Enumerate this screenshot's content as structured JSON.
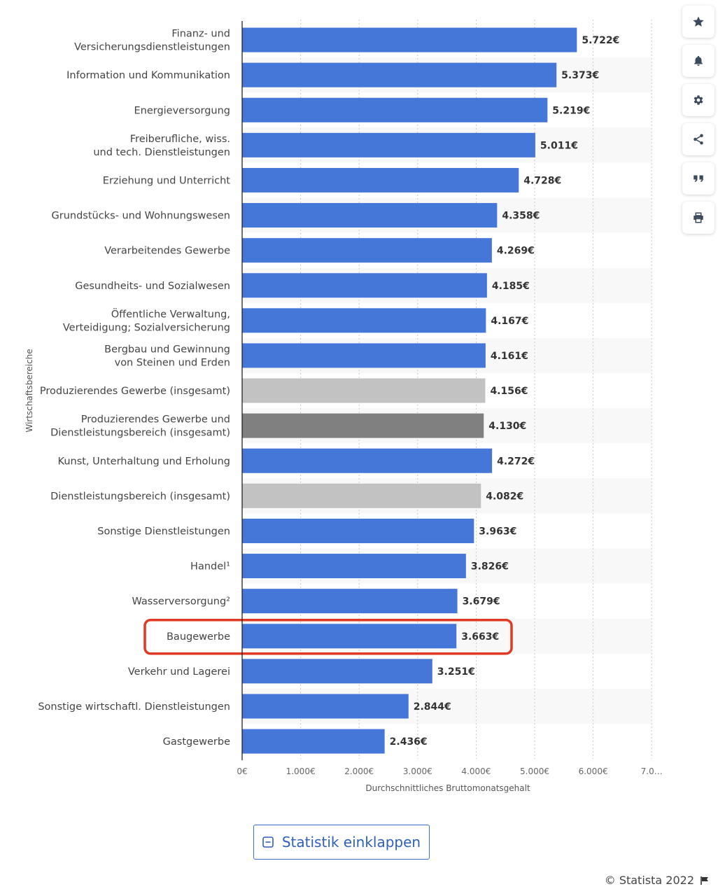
{
  "chart_data": {
    "type": "bar",
    "orientation": "horizontal",
    "categories": [
      "Finanz- und\nVersicherungsdienstleistungen",
      "Information und Kommunikation",
      "Energieversorgung",
      "Freiberufliche, wiss.\nund tech. Dienstleistungen",
      "Erziehung und Unterricht",
      "Grundstücks- und Wohnungswesen",
      "Verarbeitendes Gewerbe",
      "Gesundheits- und Sozialwesen",
      "Öffentliche Verwaltung,\nVerteidigung; Sozialversicherung",
      "Bergbau und Gewinnung\nvon Steinen und Erden",
      "Produzierendes Gewerbe (insgesamt)",
      "Produzierendes Gewerbe und\nDienstleistungsbereich (insgesamt)",
      "Kunst, Unterhaltung und Erholung",
      "Dienstleistungsbereich (insgesamt)",
      "Sonstige Dienstleistungen",
      "Handel¹",
      "Wasserversorgung²",
      "Baugewerbe",
      "Verkehr und Lagerei",
      "Sonstige wirtschaftl. Dienstleistungen",
      "Gastgewerbe"
    ],
    "values": [
      5722,
      5373,
      5219,
      5011,
      4728,
      4358,
      4269,
      4185,
      4167,
      4161,
      4156,
      4130,
      4272,
      4082,
      3963,
      3826,
      3679,
      3663,
      3251,
      2844,
      2436
    ],
    "value_labels": [
      "5.722€",
      "5.373€",
      "5.219€",
      "5.011€",
      "4.728€",
      "4.358€",
      "4.269€",
      "4.185€",
      "4.167€",
      "4.161€",
      "4.156€",
      "4.130€",
      "4.272€",
      "4.082€",
      "3.963€",
      "3.826€",
      "3.679€",
      "3.663€",
      "3.251€",
      "2.844€",
      "2.436€"
    ],
    "bar_colors": [
      "#4577d9",
      "#4577d9",
      "#4577d9",
      "#4577d9",
      "#4577d9",
      "#4577d9",
      "#4577d9",
      "#4577d9",
      "#4577d9",
      "#4577d9",
      "#c2c2c2",
      "#808080",
      "#4577d9",
      "#c2c2c2",
      "#4577d9",
      "#4577d9",
      "#4577d9",
      "#4577d9",
      "#4577d9",
      "#4577d9",
      "#4577d9"
    ],
    "highlighted_category": "Baugewerbe",
    "highlight_color": "#e03a24",
    "xlim": [
      0,
      7000
    ],
    "xticks": [
      0,
      1000,
      2000,
      3000,
      4000,
      5000,
      6000,
      7000
    ],
    "xtick_labels": [
      "0€",
      "1.000€",
      "2.000€",
      "3.000€",
      "4.000€",
      "5.000€",
      "6.000€",
      "7.0…"
    ],
    "xlabel": "Durchschnittliches Bruttomonatsgehalt",
    "ylabel": "Wirtschaftsbereiche",
    "grid": true
  },
  "toolbar": {
    "buttons": [
      {
        "name": "favorite",
        "icon": "star-icon"
      },
      {
        "name": "notification",
        "icon": "bell-icon"
      },
      {
        "name": "settings",
        "icon": "gear-icon"
      },
      {
        "name": "share",
        "icon": "share-icon"
      },
      {
        "name": "cite",
        "icon": "quote-icon"
      },
      {
        "name": "print",
        "icon": "printer-icon"
      }
    ]
  },
  "collapse_button": {
    "label": "Statistik einklappen",
    "icon": "minus-square-icon"
  },
  "footer": {
    "copyright": "© Statista 2022",
    "icon": "flag-icon"
  }
}
